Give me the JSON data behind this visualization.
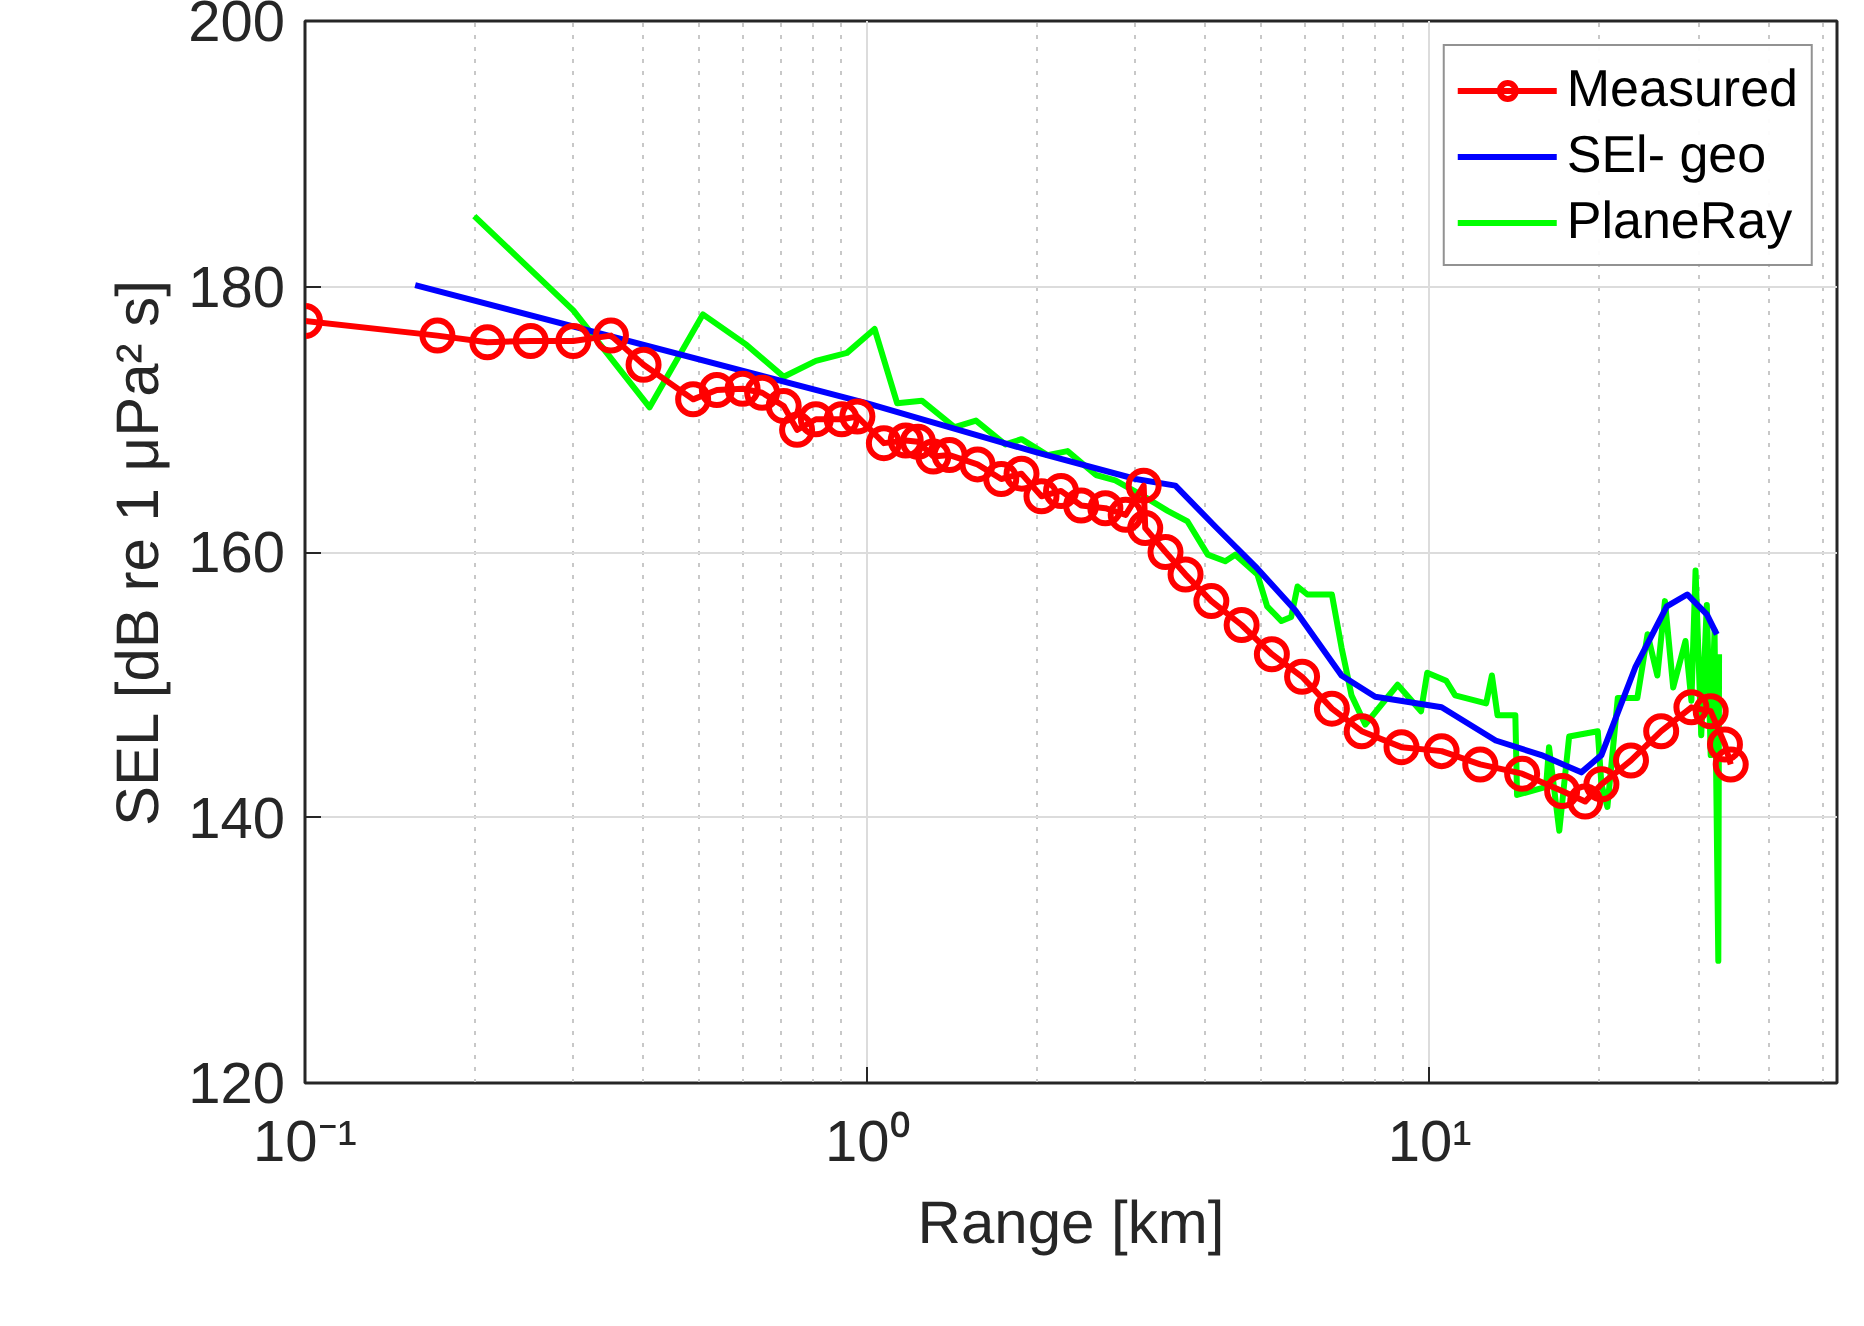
{
  "chart_data": {
    "type": "line",
    "xlabel": "Range [km]",
    "ylabel": "SEL [dB re 1 μPa² s]",
    "log": "x",
    "grid": true,
    "legend": "top right",
    "line_style": "solid",
    "xlim": [
      0.1,
      53
    ],
    "ylim": [
      120,
      200
    ],
    "xticks": [
      {
        "value": 0.1,
        "label": "10⁻¹"
      },
      {
        "value": 1,
        "label": "10⁰"
      },
      {
        "value": 10,
        "label": "10¹"
      }
    ],
    "yticks": [
      120,
      140,
      160,
      180,
      200
    ],
    "series": [
      {
        "name": "Measured",
        "color": "#ff0000",
        "marker": "circle",
        "x": [
          0.1,
          0.172,
          0.211,
          0.252,
          0.3,
          0.35,
          0.4,
          0.49,
          0.54,
          0.6,
          0.65,
          0.71,
          0.75,
          0.81,
          0.9,
          0.96,
          1.07,
          1.17,
          1.23,
          1.31,
          1.4,
          1.57,
          1.73,
          1.88,
          2.04,
          2.21,
          2.4,
          2.65,
          2.88,
          3.1,
          3.12,
          3.39,
          3.68,
          4.09,
          4.63,
          5.24,
          5.93,
          6.7,
          7.57,
          8.91,
          10.5,
          12.3,
          14.6,
          17.2,
          18.9,
          20.2,
          22.8,
          25.8,
          29.2,
          31.6,
          33.5,
          34.3
        ],
        "values": [
          177.4,
          176.3,
          175.8,
          175.9,
          175.9,
          176.3,
          174.1,
          171.5,
          172.2,
          172.3,
          172.0,
          171.0,
          169.2,
          170.0,
          170.0,
          170.2,
          168.2,
          168.4,
          168.3,
          167.2,
          167.3,
          166.6,
          165.5,
          165.9,
          164.2,
          164.6,
          163.5,
          163.3,
          162.8,
          165.0,
          161.8,
          160.0,
          158.3,
          156.3,
          154.5,
          152.3,
          150.6,
          148.2,
          146.5,
          145.3,
          145.0,
          144.0,
          143.3,
          142.0,
          141.2,
          142.5,
          144.3,
          146.5,
          148.3,
          148.0,
          145.5,
          144.0
        ]
      },
      {
        "name": "SEl- geo",
        "color": "#0000ff",
        "marker": "none",
        "x": [
          0.157,
          1.0,
          2.0,
          3.0,
          3.53,
          4.16,
          4.9,
          5.77,
          6.97,
          8.0,
          10.5,
          13.1,
          15.8,
          18.6,
          20.2,
          23.2,
          26.4,
          28.7,
          31.1,
          32.4
        ],
        "values": [
          180.1,
          171.2,
          167.5,
          165.5,
          165.0,
          161.9,
          158.9,
          155.6,
          150.7,
          149.1,
          148.3,
          145.8,
          144.7,
          143.4,
          144.7,
          151.3,
          155.9,
          156.8,
          155.3,
          153.8
        ]
      },
      {
        "name": "PlaneRay",
        "color": "#00ff00",
        "marker": "none",
        "x": [
          0.2,
          0.3,
          0.41,
          0.51,
          0.61,
          0.71,
          0.81,
          0.92,
          1.03,
          1.13,
          1.25,
          1.43,
          1.56,
          1.76,
          1.88,
          2.09,
          2.27,
          2.55,
          2.76,
          3.07,
          3.42,
          3.71,
          4.03,
          4.33,
          4.51,
          4.94,
          5.14,
          5.45,
          5.67,
          5.82,
          6.06,
          6.7,
          6.97,
          7.14,
          7.26,
          7.68,
          8.77,
          9.65,
          9.9,
          10.7,
          11.1,
          12.6,
          12.9,
          13.2,
          14.2,
          14.3,
          16.1,
          16.3,
          17.0,
          17.7,
          19.9,
          20.2,
          20.7,
          21.6,
          23.4,
          24.4,
          25.4,
          26.2,
          27.1,
          28.5,
          29.2,
          29.7,
          30.4,
          31.1,
          31.6,
          32.1,
          32.6,
          32.7
        ],
        "values": [
          185.3,
          178.2,
          170.9,
          177.9,
          175.6,
          173.2,
          174.4,
          175.0,
          176.8,
          171.2,
          171.4,
          169.4,
          169.9,
          168.1,
          168.5,
          167.3,
          167.6,
          165.8,
          165.4,
          164.3,
          163.1,
          162.3,
          159.8,
          159.3,
          159.8,
          158.3,
          155.9,
          154.8,
          155.1,
          157.4,
          156.8,
          156.8,
          152.8,
          150.7,
          149.2,
          147.0,
          150.0,
          148.0,
          150.9,
          150.3,
          149.2,
          148.6,
          150.7,
          147.7,
          147.7,
          141.7,
          142.3,
          145.3,
          139.0,
          146.1,
          146.5,
          142.5,
          140.8,
          149.0,
          149.0,
          153.8,
          150.7,
          156.3,
          149.8,
          153.3,
          148.8,
          158.6,
          146.2,
          156.0,
          144.7,
          154.1,
          129.2,
          152.3
        ]
      }
    ]
  }
}
